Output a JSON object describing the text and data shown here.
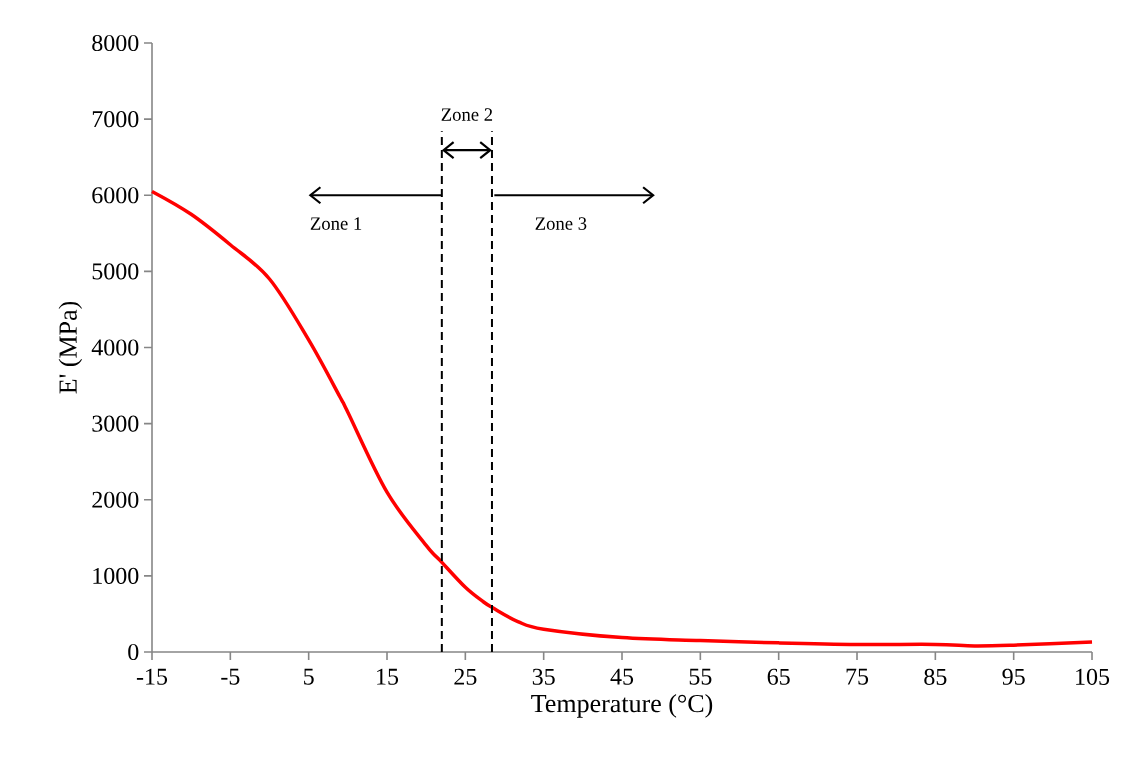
{
  "chart_data": {
    "type": "line",
    "xlabel": "Temperature (°C)",
    "ylabel": "E' (MPa)",
    "x": [
      -15,
      -10,
      -5,
      0,
      5,
      9,
      10,
      15,
      20,
      21.8,
      25,
      27.3,
      28.5,
      31.7,
      35,
      45,
      55,
      65,
      75,
      85,
      90,
      95,
      105
    ],
    "series": [
      {
        "color": "#ff0000",
        "values": [
          6050,
          5750,
          5350,
          4900,
          4100,
          3350,
          3150,
          2100,
          1400,
          1200,
          850,
          660,
          580,
          400,
          300,
          190,
          150,
          120,
          100,
          100,
          80,
          90,
          130
        ]
      }
    ],
    "xlim": [
      -15,
      105
    ],
    "ylim": [
      0,
      8000
    ],
    "xticks": [
      -15,
      -5,
      5,
      15,
      25,
      35,
      45,
      55,
      65,
      75,
      85,
      95,
      105
    ],
    "yticks": [
      0,
      1000,
      2000,
      3000,
      4000,
      5000,
      6000,
      7000,
      8000
    ],
    "grid": false,
    "marker": "none",
    "line_style": "solid",
    "ref_lines": [
      {
        "axis": "x",
        "value": 22,
        "color": "#000000",
        "line_style": "dashed"
      },
      {
        "axis": "x",
        "value": 28.4,
        "color": "#000000",
        "line_style": "dashed"
      }
    ],
    "annotations": [
      {
        "text": "Zone 1",
        "x": 22,
        "y": 6000
      },
      "Zone 2",
      "Zone 3"
    ]
  }
}
